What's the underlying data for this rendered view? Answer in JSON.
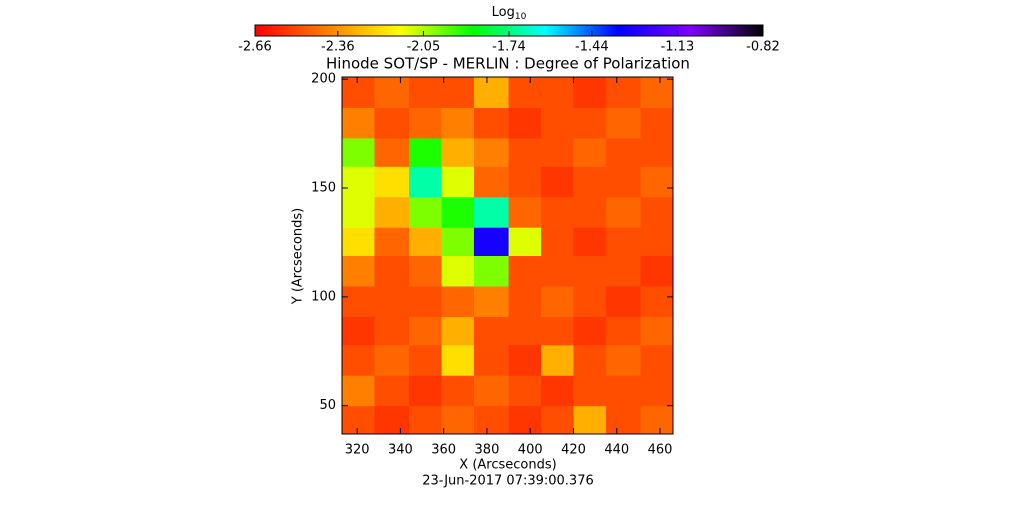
{
  "chart_data": {
    "type": "heatmap",
    "title": "Hinode SOT/SP - MERLIN : Degree of Polarization",
    "subtitle": "23-Jun-2017 07:39:00.376",
    "x_label": "X (Arcseconds)",
    "y_label": "Y (Arcseconds)",
    "colorbar_label": "Log",
    "colorbar_label_sub": "10",
    "xlim": [
      313,
      466
    ],
    "xticks": [
      320,
      340,
      360,
      380,
      400,
      420,
      440,
      460
    ],
    "ylim": [
      37,
      201
    ],
    "yticks": [
      50,
      100,
      150,
      200
    ],
    "zlim": [
      -2.66,
      -0.82
    ],
    "zticks": [
      -2.66,
      -2.36,
      -2.05,
      -1.74,
      -1.44,
      -1.13,
      -0.82
    ],
    "colormap": [
      "#ff0000",
      "#ff8000",
      "#ffff00",
      "#00ff00",
      "#00ffff",
      "#0000ff",
      "#8000ff",
      "#000000"
    ],
    "x_edges": [
      313,
      328,
      344,
      359,
      374,
      390,
      405,
      420,
      435,
      451,
      466
    ],
    "y_edges": [
      37,
      50,
      64,
      78,
      91,
      105,
      119,
      132,
      146,
      160,
      173,
      187,
      201
    ],
    "z": [
      [
        -2.5,
        -2.55,
        -2.5,
        -2.45,
        -2.5,
        -2.55,
        -2.5,
        -2.3,
        -2.5,
        -2.45
      ],
      [
        -2.4,
        -2.5,
        -2.55,
        -2.5,
        -2.45,
        -2.5,
        -2.55,
        -2.5,
        -2.5,
        -2.5
      ],
      [
        -2.5,
        -2.45,
        -2.5,
        -2.2,
        -2.5,
        -2.55,
        -2.3,
        -2.5,
        -2.45,
        -2.5
      ],
      [
        -2.55,
        -2.5,
        -2.45,
        -2.3,
        -2.5,
        -2.5,
        -2.5,
        -2.55,
        -2.5,
        -2.45
      ],
      [
        -2.5,
        -2.5,
        -2.5,
        -2.45,
        -2.4,
        -2.5,
        -2.45,
        -2.5,
        -2.55,
        -2.5
      ],
      [
        -2.4,
        -2.5,
        -2.45,
        -2.1,
        -2.0,
        -2.5,
        -2.5,
        -2.5,
        -2.5,
        -2.55
      ],
      [
        -2.2,
        -2.45,
        -2.3,
        -2.0,
        -1.3,
        -2.1,
        -2.5,
        -2.55,
        -2.5,
        -2.5
      ],
      [
        -2.1,
        -2.3,
        -2.0,
        -1.9,
        -1.7,
        -2.45,
        -2.5,
        -2.5,
        -2.45,
        -2.5
      ],
      [
        -2.1,
        -2.2,
        -1.7,
        -2.1,
        -2.45,
        -2.5,
        -2.55,
        -2.5,
        -2.5,
        -2.45
      ],
      [
        -2.0,
        -2.45,
        -1.9,
        -2.3,
        -2.4,
        -2.5,
        -2.5,
        -2.45,
        -2.5,
        -2.5
      ],
      [
        -2.4,
        -2.5,
        -2.45,
        -2.4,
        -2.5,
        -2.55,
        -2.5,
        -2.5,
        -2.45,
        -2.5
      ],
      [
        -2.5,
        -2.45,
        -2.5,
        -2.5,
        -2.3,
        -2.5,
        -2.5,
        -2.55,
        -2.5,
        -2.45
      ]
    ]
  }
}
